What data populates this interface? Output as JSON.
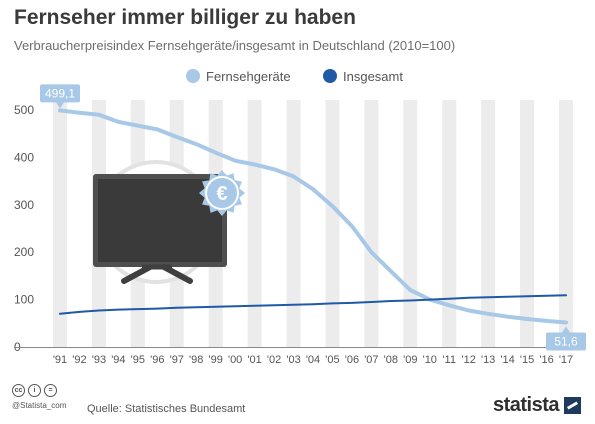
{
  "header": {
    "title": "Fernseher immer billiger zu haben",
    "subtitle": "Verbraucherpreisindex Fernsehgeräte/insgesamt in Deutschland (2010=100)"
  },
  "footer": {
    "cc_icons": [
      "cc",
      "i",
      "="
    ],
    "handle": "@Statista_com",
    "source": "Quelle: Statistisches Bundesamt",
    "logo": "statista"
  },
  "colors": {
    "fernsehgeraete": "#a7c8e6",
    "insgesamt": "#1f5aa6",
    "band": "#ececec",
    "label_bg": "#a7c8e6"
  },
  "chart_data": {
    "type": "line",
    "title": "Fernseher immer billiger zu haben",
    "subtitle": "Verbraucherpreisindex Fernsehgeräte/insgesamt in Deutschland (2010=100)",
    "xlabel": "",
    "ylabel": "",
    "ylim": [
      0,
      500
    ],
    "yticks": [
      0,
      100,
      200,
      300,
      400,
      500
    ],
    "grid": false,
    "legend": "top-center",
    "x": [
      "'91",
      "'92",
      "'93",
      "'94",
      "'95",
      "'96",
      "'97",
      "'98",
      "'99",
      "'00",
      "'01",
      "'02",
      "'03",
      "'04",
      "'05",
      "'06",
      "'07",
      "'08",
      "'09",
      "'10",
      "'11",
      "'12",
      "'13",
      "'14",
      "'15",
      "'16",
      "'17"
    ],
    "series": [
      {
        "name": "Fernsehgeräte",
        "color": "#a7c8e6",
        "values": [
          499.1,
          494,
          490,
          475,
          467,
          459,
          443,
          428,
          410,
          393,
          385,
          375,
          360,
          333,
          297,
          255,
          200,
          160,
          120,
          100,
          88,
          77,
          70,
          64,
          59,
          55,
          51.6
        ]
      },
      {
        "name": "Insgesamt",
        "color": "#1f5aa6",
        "values": [
          70,
          74,
          77,
          79,
          80,
          81,
          83,
          84,
          85,
          86,
          87,
          88,
          89,
          90,
          92,
          93,
          95,
          97,
          98,
          100,
          102,
          104,
          105,
          106,
          107,
          108,
          109
        ]
      }
    ],
    "annotations": [
      {
        "series": "Fernsehgeräte",
        "x": "'91",
        "label": "499,1"
      },
      {
        "series": "Fernsehgeräte",
        "x": "'17",
        "label": "51,6"
      }
    ]
  }
}
